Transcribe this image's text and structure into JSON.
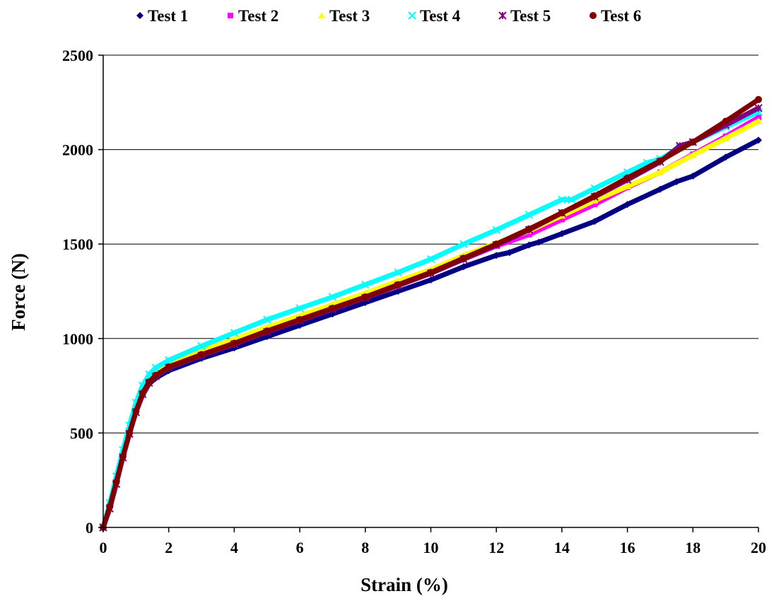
{
  "chart_data": {
    "type": "scatter",
    "title": "",
    "xlabel": "Strain (%)",
    "ylabel": "Force (N)",
    "xlim": [
      0,
      20
    ],
    "ylim": [
      0,
      2500
    ],
    "xticks": [
      0,
      2,
      4,
      6,
      8,
      10,
      12,
      14,
      16,
      18,
      20
    ],
    "yticks": [
      0,
      500,
      1000,
      1500,
      2000,
      2500
    ],
    "grid": "horizontal major gridlines",
    "legend_position": "top",
    "series": [
      {
        "name": "Test 1",
        "color": "#000080",
        "marker": "diamond",
        "points": [
          [
            0,
            0
          ],
          [
            0.2,
            120
          ],
          [
            0.4,
            250
          ],
          [
            0.6,
            380
          ],
          [
            0.8,
            500
          ],
          [
            1.0,
            610
          ],
          [
            1.2,
            700
          ],
          [
            1.4,
            760
          ],
          [
            1.6,
            790
          ],
          [
            2,
            830
          ],
          [
            3,
            895
          ],
          [
            4,
            950
          ],
          [
            5,
            1010
          ],
          [
            6,
            1070
          ],
          [
            7,
            1130
          ],
          [
            8,
            1190
          ],
          [
            9,
            1250
          ],
          [
            10,
            1310
          ],
          [
            11,
            1380
          ],
          [
            12,
            1440
          ],
          [
            12.4,
            1455
          ],
          [
            13,
            1495
          ],
          [
            13.3,
            1510
          ],
          [
            14,
            1555
          ],
          [
            15,
            1620
          ],
          [
            16,
            1710
          ],
          [
            17,
            1790
          ],
          [
            17.5,
            1830
          ],
          [
            18,
            1860
          ],
          [
            19,
            1960
          ],
          [
            20,
            2050
          ]
        ]
      },
      {
        "name": "Test 2",
        "color": "#FF00FF",
        "marker": "square",
        "points": [
          [
            0,
            0
          ],
          [
            0.2,
            120
          ],
          [
            0.4,
            255
          ],
          [
            0.6,
            390
          ],
          [
            0.8,
            510
          ],
          [
            1.0,
            625
          ],
          [
            1.2,
            715
          ],
          [
            1.4,
            775
          ],
          [
            1.6,
            805
          ],
          [
            2,
            850
          ],
          [
            3,
            920
          ],
          [
            4,
            975
          ],
          [
            5,
            1040
          ],
          [
            6,
            1100
          ],
          [
            7,
            1160
          ],
          [
            8,
            1220
          ],
          [
            9,
            1285
          ],
          [
            10,
            1345
          ],
          [
            11,
            1420
          ],
          [
            12,
            1490
          ],
          [
            13,
            1550
          ],
          [
            14,
            1630
          ],
          [
            15,
            1710
          ],
          [
            16,
            1800
          ],
          [
            17,
            1880
          ],
          [
            18,
            1975
          ],
          [
            19,
            2070
          ],
          [
            20,
            2170
          ]
        ]
      },
      {
        "name": "Test 3",
        "color": "#FFFF00",
        "marker": "triangle",
        "points": [
          [
            0,
            0
          ],
          [
            0.2,
            125
          ],
          [
            0.4,
            260
          ],
          [
            0.6,
            395
          ],
          [
            0.8,
            515
          ],
          [
            1.0,
            630
          ],
          [
            1.2,
            725
          ],
          [
            1.4,
            785
          ],
          [
            1.6,
            815
          ],
          [
            2,
            860
          ],
          [
            3,
            935
          ],
          [
            4,
            995
          ],
          [
            5,
            1060
          ],
          [
            6,
            1120
          ],
          [
            7,
            1180
          ],
          [
            8,
            1240
          ],
          [
            9,
            1305
          ],
          [
            10,
            1365
          ],
          [
            11,
            1440
          ],
          [
            12,
            1505
          ],
          [
            13,
            1570
          ],
          [
            14,
            1650
          ],
          [
            15,
            1730
          ],
          [
            16,
            1805
          ],
          [
            17,
            1880
          ],
          [
            18,
            1970
          ],
          [
            19,
            2060
          ],
          [
            20,
            2150
          ]
        ]
      },
      {
        "name": "Test 4",
        "color": "#00FFFF",
        "marker": "x",
        "points": [
          [
            0,
            0
          ],
          [
            0.2,
            130
          ],
          [
            0.4,
            270
          ],
          [
            0.6,
            410
          ],
          [
            0.8,
            540
          ],
          [
            1.0,
            660
          ],
          [
            1.2,
            750
          ],
          [
            1.4,
            810
          ],
          [
            1.6,
            845
          ],
          [
            2,
            885
          ],
          [
            3,
            960
          ],
          [
            4,
            1030
          ],
          [
            5,
            1100
          ],
          [
            6,
            1160
          ],
          [
            7,
            1220
          ],
          [
            8,
            1285
          ],
          [
            9,
            1350
          ],
          [
            10,
            1420
          ],
          [
            11,
            1500
          ],
          [
            12,
            1575
          ],
          [
            13,
            1655
          ],
          [
            14,
            1735
          ],
          [
            14.3,
            1735
          ],
          [
            15,
            1795
          ],
          [
            16,
            1880
          ],
          [
            16.6,
            1930
          ],
          [
            17,
            1950
          ],
          [
            17.6,
            2010
          ],
          [
            18,
            2040
          ],
          [
            19,
            2120
          ],
          [
            20,
            2200
          ]
        ]
      },
      {
        "name": "Test 5",
        "color": "#800080",
        "marker": "star",
        "points": [
          [
            0,
            0
          ],
          [
            0.2,
            100
          ],
          [
            0.4,
            230
          ],
          [
            0.6,
            370
          ],
          [
            0.8,
            495
          ],
          [
            1.0,
            610
          ],
          [
            1.2,
            705
          ],
          [
            1.4,
            765
          ],
          [
            1.6,
            800
          ],
          [
            2,
            845
          ],
          [
            3,
            910
          ],
          [
            4,
            970
          ],
          [
            5,
            1035
          ],
          [
            6,
            1095
          ],
          [
            7,
            1155
          ],
          [
            8,
            1215
          ],
          [
            9,
            1280
          ],
          [
            10,
            1345
          ],
          [
            11,
            1420
          ],
          [
            12,
            1495
          ],
          [
            13,
            1575
          ],
          [
            14,
            1665
          ],
          [
            15,
            1750
          ],
          [
            16,
            1840
          ],
          [
            17,
            1935
          ],
          [
            17.6,
            2020
          ],
          [
            18,
            2040
          ],
          [
            19,
            2130
          ],
          [
            20,
            2220
          ]
        ]
      },
      {
        "name": "Test 6",
        "color": "#800000",
        "marker": "circle",
        "points": [
          [
            0,
            0
          ],
          [
            0.2,
            110
          ],
          [
            0.4,
            240
          ],
          [
            0.6,
            375
          ],
          [
            0.8,
            500
          ],
          [
            1.0,
            615
          ],
          [
            1.2,
            710
          ],
          [
            1.4,
            770
          ],
          [
            1.6,
            805
          ],
          [
            2,
            850
          ],
          [
            3,
            915
          ],
          [
            4,
            975
          ],
          [
            5,
            1040
          ],
          [
            6,
            1100
          ],
          [
            7,
            1160
          ],
          [
            8,
            1220
          ],
          [
            9,
            1285
          ],
          [
            10,
            1350
          ],
          [
            11,
            1425
          ],
          [
            12,
            1500
          ],
          [
            13,
            1580
          ],
          [
            14,
            1665
          ],
          [
            15,
            1755
          ],
          [
            16,
            1850
          ],
          [
            17,
            1940
          ],
          [
            18,
            2040
          ],
          [
            19,
            2150
          ],
          [
            20,
            2265
          ]
        ]
      }
    ]
  }
}
